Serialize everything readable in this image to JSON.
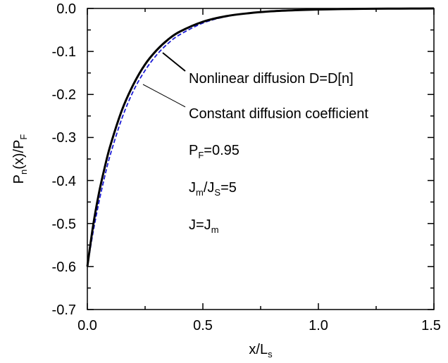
{
  "chart_data": {
    "type": "line",
    "title": "",
    "xlabel": {
      "main": "x/L",
      "sub": "s"
    },
    "ylabel": {
      "p1": "P",
      "s1": "n",
      "p2": "(x)/P",
      "s2": "F"
    },
    "xlim": [
      0.0,
      1.5
    ],
    "ylim": [
      -0.7,
      0.0
    ],
    "x_ticks": [
      "0.0",
      "0.5",
      "1.0",
      "1.5"
    ],
    "y_ticks": [
      "0.0",
      "-0.1",
      "-0.2",
      "-0.3",
      "-0.4",
      "-0.5",
      "-0.6",
      "-0.7"
    ],
    "grid": false,
    "series": [
      {
        "name": "Nonlinear diffusion D=D[n]",
        "color": "#000000",
        "style": "solid",
        "x": [
          0.0,
          0.025,
          0.05,
          0.075,
          0.1,
          0.15,
          0.2,
          0.25,
          0.3,
          0.35,
          0.4,
          0.5,
          0.6,
          0.7,
          0.8,
          0.9,
          1.0,
          1.1,
          1.2,
          1.3,
          1.4,
          1.5
        ],
        "y": [
          -0.6,
          -0.505,
          -0.43,
          -0.37,
          -0.318,
          -0.236,
          -0.176,
          -0.13,
          -0.097,
          -0.072,
          -0.054,
          -0.031,
          -0.018,
          -0.011,
          -0.0065,
          -0.004,
          -0.0025,
          -0.0015,
          -0.0009,
          -0.0005,
          -0.0002,
          -0.0001
        ]
      },
      {
        "name": "Constant diffusion coefficient",
        "color": "#1a1ad4",
        "style": "dashed",
        "x": [
          0.0,
          0.025,
          0.05,
          0.075,
          0.1,
          0.15,
          0.2,
          0.25,
          0.3,
          0.35,
          0.4,
          0.5,
          0.6,
          0.7,
          0.8,
          0.9,
          1.0,
          1.1,
          1.2,
          1.3,
          1.4,
          1.5
        ],
        "y": [
          -0.6,
          -0.52,
          -0.451,
          -0.391,
          -0.339,
          -0.255,
          -0.191,
          -0.144,
          -0.108,
          -0.081,
          -0.061,
          -0.034,
          -0.019,
          -0.011,
          -0.006,
          -0.0035,
          -0.002,
          -0.0011,
          -0.0006,
          -0.0003,
          -0.0002,
          -0.0001
        ]
      }
    ],
    "annotations": {
      "nonlinear": "Nonlinear diffusion D=D[n]",
      "constant": "Constant diffusion coefficient",
      "pf": {
        "p": "P",
        "s": "F",
        "t": "=0.95"
      },
      "ratio": {
        "p1": "J",
        "s1": "m",
        "p2": "/J",
        "s2": "S",
        "t": "=5"
      },
      "current": {
        "p": "J=J",
        "s": "m"
      }
    }
  }
}
